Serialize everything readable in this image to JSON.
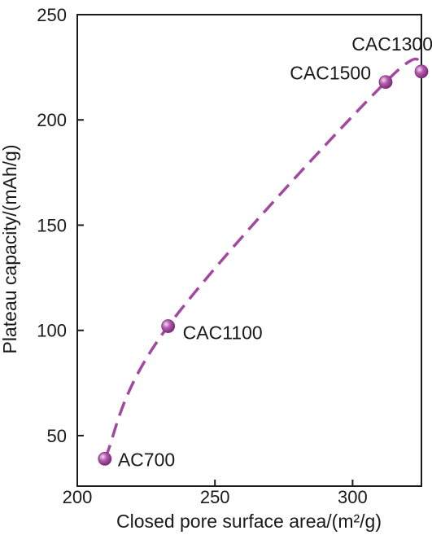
{
  "chart_data": {
    "type": "line",
    "xlabel": "Closed pore surface area/(m²/g)",
    "ylabel": "Plateau capacity/(mAh/g)",
    "xlim": [
      200,
      325
    ],
    "ylim": [
      26,
      250
    ],
    "xticks": [
      "200",
      "250",
      "300"
    ],
    "yticks": [
      "50",
      "100",
      "150",
      "200",
      "250"
    ],
    "x_tick_values": [
      200,
      250,
      300
    ],
    "y_tick_values": [
      50,
      100,
      150,
      200,
      250
    ],
    "series": [
      {
        "color": "#a2489e",
        "line_style": "dashed",
        "marker": "sphere",
        "points": [
          {
            "label": "AC700",
            "x": 210,
            "y": 39
          },
          {
            "label": "CAC1100",
            "x": 233,
            "y": 102
          },
          {
            "label": "CAC1500",
            "x": 312,
            "y": 218
          },
          {
            "label": "CAC1300",
            "x": 325,
            "y": 223
          }
        ]
      }
    ],
    "grid": false,
    "legend": "none"
  }
}
